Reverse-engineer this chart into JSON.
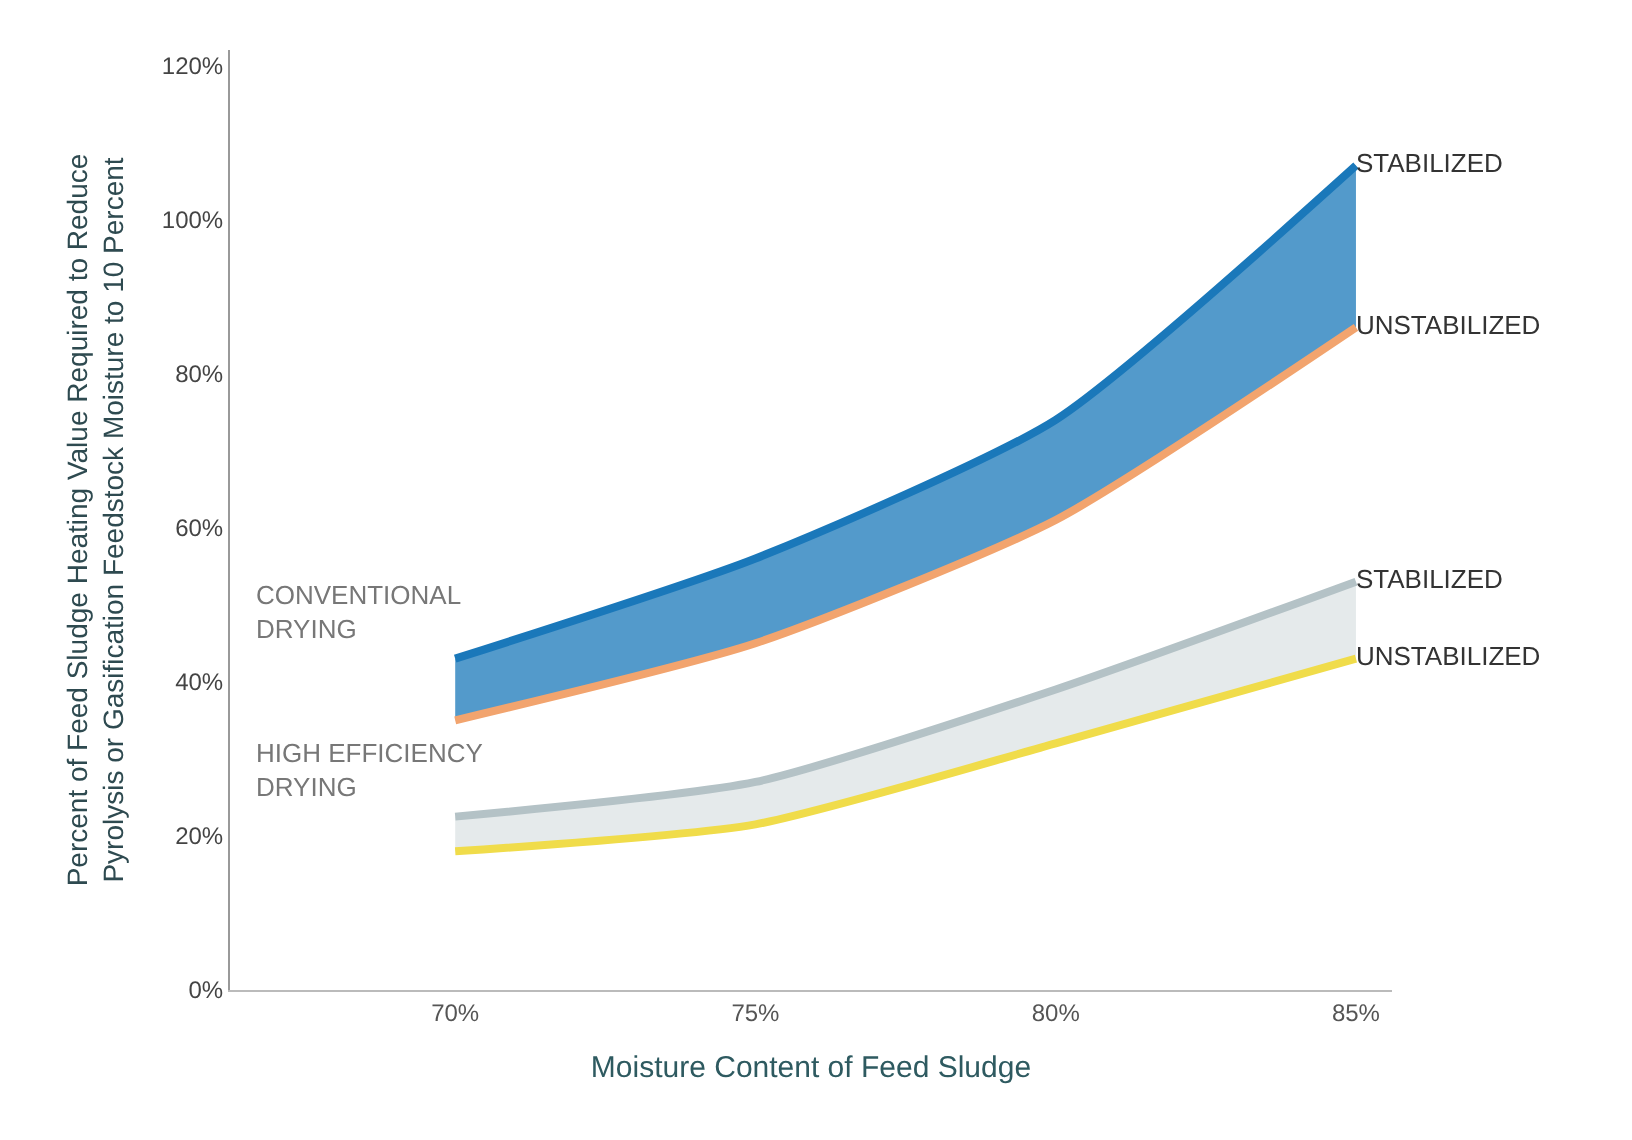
{
  "chart_data": {
    "type": "area",
    "xlabel": "Moisture Content of Feed Sludge",
    "ylabel": "Percent of Feed Sludge Heating Value Required to Reduce\nPyrolysis or Gasification Feedstock Moisture to 10 Percent",
    "categories": [
      "70%",
      "75%",
      "80%",
      "85%"
    ],
    "series": [
      {
        "name": "UNSTABILIZED",
        "type": "line",
        "color": "#f2a46e",
        "values": [
          35,
          45,
          61,
          86
        ]
      },
      {
        "name": "STABILIZED",
        "color": "#1a78ba",
        "values": [
          43,
          56,
          74,
          107
        ]
      },
      {
        "name": "UNSTABILIZED",
        "type": "line",
        "color": "#f0dc4a",
        "values": [
          18,
          21.5,
          32,
          43
        ]
      },
      {
        "name": "STABILIZED",
        "color": "#b4c2c6",
        "values": [
          22.5,
          27,
          39,
          53
        ]
      }
    ],
    "annotations": [
      "CONVENTIONAL\nDRYING",
      "HIGH EFFICIENCY\nDRYING"
    ],
    "ylim": [
      0,
      122
    ],
    "yticks": [
      {
        "value": 0,
        "label": "0%"
      },
      {
        "value": 20,
        "label": "20%"
      },
      {
        "value": 40,
        "label": "40%"
      },
      {
        "value": 60,
        "label": "60%"
      },
      {
        "value": 80,
        "label": "80%"
      },
      {
        "value": 100,
        "label": "100%"
      },
      {
        "value": 120,
        "label": "120%"
      }
    ],
    "legend": false
  }
}
